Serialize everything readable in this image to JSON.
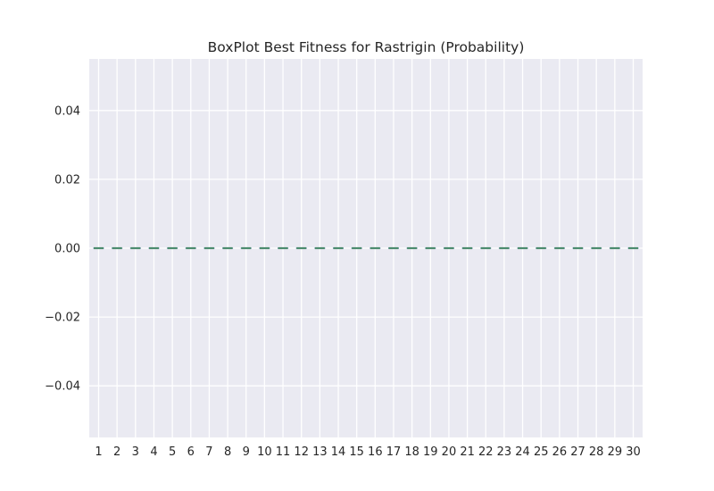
{
  "chart_data": {
    "type": "box",
    "title": "BoxPlot Best Fitness for Rastrigin (Probability)",
    "xlabel": "",
    "ylabel": "",
    "categories": [
      "1",
      "2",
      "3",
      "4",
      "5",
      "6",
      "7",
      "8",
      "9",
      "10",
      "11",
      "12",
      "13",
      "14",
      "15",
      "16",
      "17",
      "18",
      "19",
      "20",
      "21",
      "22",
      "23",
      "24",
      "25",
      "26",
      "27",
      "28",
      "29",
      "30"
    ],
    "boxes": [
      {
        "category": "1",
        "min": 0,
        "q1": 0,
        "median": 0,
        "q3": 0,
        "max": 0
      },
      {
        "category": "2",
        "min": 0,
        "q1": 0,
        "median": 0,
        "q3": 0,
        "max": 0
      },
      {
        "category": "3",
        "min": 0,
        "q1": 0,
        "median": 0,
        "q3": 0,
        "max": 0
      },
      {
        "category": "4",
        "min": 0,
        "q1": 0,
        "median": 0,
        "q3": 0,
        "max": 0
      },
      {
        "category": "5",
        "min": 0,
        "q1": 0,
        "median": 0,
        "q3": 0,
        "max": 0
      },
      {
        "category": "6",
        "min": 0,
        "q1": 0,
        "median": 0,
        "q3": 0,
        "max": 0
      },
      {
        "category": "7",
        "min": 0,
        "q1": 0,
        "median": 0,
        "q3": 0,
        "max": 0
      },
      {
        "category": "8",
        "min": 0,
        "q1": 0,
        "median": 0,
        "q3": 0,
        "max": 0
      },
      {
        "category": "9",
        "min": 0,
        "q1": 0,
        "median": 0,
        "q3": 0,
        "max": 0
      },
      {
        "category": "10",
        "min": 0,
        "q1": 0,
        "median": 0,
        "q3": 0,
        "max": 0
      },
      {
        "category": "11",
        "min": 0,
        "q1": 0,
        "median": 0,
        "q3": 0,
        "max": 0
      },
      {
        "category": "12",
        "min": 0,
        "q1": 0,
        "median": 0,
        "q3": 0,
        "max": 0
      },
      {
        "category": "13",
        "min": 0,
        "q1": 0,
        "median": 0,
        "q3": 0,
        "max": 0
      },
      {
        "category": "14",
        "min": 0,
        "q1": 0,
        "median": 0,
        "q3": 0,
        "max": 0
      },
      {
        "category": "15",
        "min": 0,
        "q1": 0,
        "median": 0,
        "q3": 0,
        "max": 0
      },
      {
        "category": "16",
        "min": 0,
        "q1": 0,
        "median": 0,
        "q3": 0,
        "max": 0
      },
      {
        "category": "17",
        "min": 0,
        "q1": 0,
        "median": 0,
        "q3": 0,
        "max": 0
      },
      {
        "category": "18",
        "min": 0,
        "q1": 0,
        "median": 0,
        "q3": 0,
        "max": 0
      },
      {
        "category": "19",
        "min": 0,
        "q1": 0,
        "median": 0,
        "q3": 0,
        "max": 0
      },
      {
        "category": "20",
        "min": 0,
        "q1": 0,
        "median": 0,
        "q3": 0,
        "max": 0
      },
      {
        "category": "21",
        "min": 0,
        "q1": 0,
        "median": 0,
        "q3": 0,
        "max": 0
      },
      {
        "category": "22",
        "min": 0,
        "q1": 0,
        "median": 0,
        "q3": 0,
        "max": 0
      },
      {
        "category": "23",
        "min": 0,
        "q1": 0,
        "median": 0,
        "q3": 0,
        "max": 0
      },
      {
        "category": "24",
        "min": 0,
        "q1": 0,
        "median": 0,
        "q3": 0,
        "max": 0
      },
      {
        "category": "25",
        "min": 0,
        "q1": 0,
        "median": 0,
        "q3": 0,
        "max": 0
      },
      {
        "category": "26",
        "min": 0,
        "q1": 0,
        "median": 0,
        "q3": 0,
        "max": 0
      },
      {
        "category": "27",
        "min": 0,
        "q1": 0,
        "median": 0,
        "q3": 0,
        "max": 0
      },
      {
        "category": "28",
        "min": 0,
        "q1": 0,
        "median": 0,
        "q3": 0,
        "max": 0
      },
      {
        "category": "29",
        "min": 0,
        "q1": 0,
        "median": 0,
        "q3": 0,
        "max": 0
      },
      {
        "category": "30",
        "min": 0,
        "q1": 0,
        "median": 0,
        "q3": 0,
        "max": 0
      }
    ],
    "ylim": [
      -0.055,
      0.055
    ],
    "yticks": [
      -0.04,
      -0.02,
      0.0,
      0.02,
      0.04
    ],
    "ytick_labels": [
      "−0.04",
      "−0.02",
      "0.00",
      "0.02",
      "0.04"
    ],
    "grid": true,
    "colors": {
      "plot_background": "#EAEAF2",
      "grid": "#FFFFFF",
      "median_line": "#4C8C6E",
      "box_line": "#4C72B0",
      "text": "#262626"
    }
  }
}
